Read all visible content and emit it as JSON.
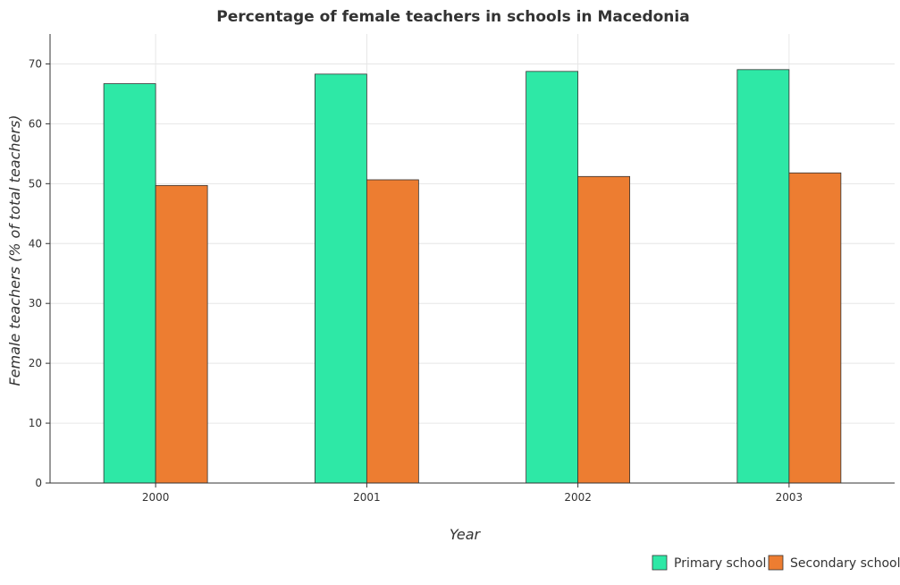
{
  "chart_data": {
    "type": "bar",
    "title": "Percentage of female teachers in schools in Macedonia",
    "xlabel": "Year",
    "ylabel": "Female teachers (% of total teachers)",
    "categories": [
      "2000",
      "2001",
      "2002",
      "2003"
    ],
    "series": [
      {
        "name": "Primary school",
        "color": "#2ee8a6",
        "values": [
          66.7,
          68.3,
          68.75,
          69.05
        ]
      },
      {
        "name": "Secondary school",
        "color": "#ed7d31",
        "values": [
          49.7,
          50.65,
          51.2,
          51.8
        ]
      }
    ],
    "ylim": [
      0,
      75
    ],
    "yticks": [
      0,
      10,
      20,
      30,
      40,
      50,
      60,
      70
    ],
    "grid": true,
    "legend_position": "bottom-right"
  }
}
